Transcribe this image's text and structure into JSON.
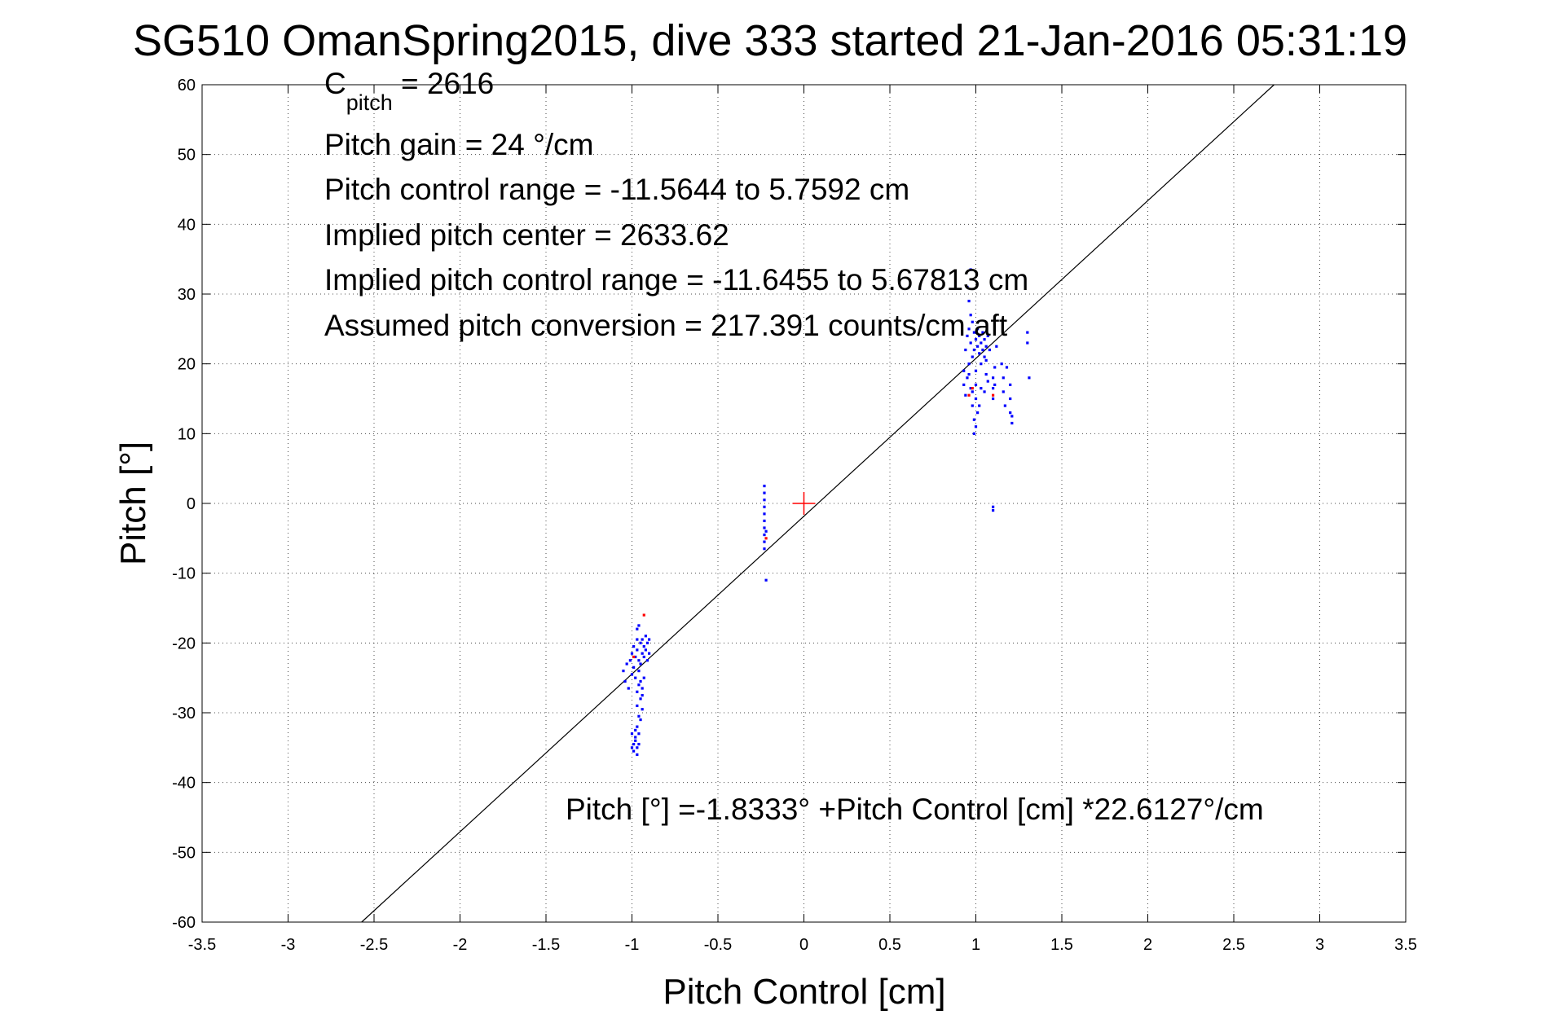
{
  "chart_data": {
    "type": "scatter",
    "title": "SG510 OmanSpring2015, dive 333 started 21-Jan-2016 05:31:19",
    "xlabel": "Pitch Control [cm]",
    "ylabel": "Pitch [°]",
    "xlim": [
      -3.5,
      3.5
    ],
    "ylim": [
      -60,
      60
    ],
    "xticks": [
      -3.5,
      -3,
      -2.5,
      -2,
      -1.5,
      -1,
      -0.5,
      0,
      0.5,
      1,
      1.5,
      2,
      2.5,
      3,
      3.5
    ],
    "yticks": [
      -60,
      -50,
      -40,
      -30,
      -20,
      -10,
      0,
      10,
      20,
      30,
      40,
      50,
      60
    ],
    "xtick_labels": [
      "-3.5",
      "-3",
      "-2.5",
      "-2",
      "-1.5",
      "-1",
      "-0.5",
      "0",
      "0.5",
      "1",
      "1.5",
      "2",
      "2.5",
      "3",
      "3.5"
    ],
    "ytick_labels": [
      "-60",
      "-50",
      "-40",
      "-30",
      "-20",
      "-10",
      "0",
      "10",
      "20",
      "30",
      "40",
      "50",
      "60"
    ],
    "grid": true,
    "colors": {
      "main": "#0000ff",
      "flagged": "#ff0000",
      "fit": "#000000",
      "center": "#ff0000"
    },
    "fit_line": {
      "intercept": -1.8333,
      "slope": 22.6127
    },
    "center_marker": {
      "x": 0,
      "y": 0
    },
    "annotations": {
      "c_pitch_main": "C",
      "c_pitch_sub": "pitch",
      "c_pitch_value": " = 2616",
      "pitch_gain": "Pitch gain = 24 °/cm",
      "control_range": "Pitch control range = -11.5644 to 5.7592 cm",
      "implied_center": "Implied pitch center = 2633.62",
      "implied_range": "Implied pitch control range = -11.6455 to 5.67813 cm",
      "conversion": "Assumed pitch conversion = 217.391 counts/cm aft",
      "fit_equation": "Pitch [°] =-1.8333° +Pitch Control [cm] *22.6127°/cm"
    },
    "series": [
      {
        "values": [
          [
            -1.05,
            -24
          ],
          [
            -1.04,
            -25.5
          ],
          [
            -1.03,
            -23
          ],
          [
            -1.02,
            -26.5
          ],
          [
            -1.01,
            -22.5
          ],
          [
            -1.0,
            -21.5
          ],
          [
            -1.0,
            -24.5
          ],
          [
            -0.99,
            -20.5
          ],
          [
            -0.99,
            -23.5
          ],
          [
            -0.98,
            -22
          ],
          [
            -0.98,
            -25
          ],
          [
            -0.97,
            -18
          ],
          [
            -0.97,
            -19.5
          ],
          [
            -0.97,
            -21
          ],
          [
            -0.97,
            -27
          ],
          [
            -0.96,
            -17.5
          ],
          [
            -0.96,
            -22.5
          ],
          [
            -0.96,
            -24
          ],
          [
            -0.95,
            -20
          ],
          [
            -0.95,
            -23
          ],
          [
            -0.94,
            -21.5
          ],
          [
            -0.94,
            -19.5
          ],
          [
            -0.93,
            -22
          ],
          [
            -0.93,
            -20.5
          ],
          [
            -0.92,
            -21
          ],
          [
            -0.92,
            -19
          ],
          [
            -0.91,
            -22.5
          ],
          [
            -0.91,
            -20
          ],
          [
            -0.9,
            -19.5
          ],
          [
            -0.9,
            -21.5
          ],
          [
            -0.97,
            -29
          ],
          [
            -0.96,
            -30.5
          ],
          [
            -0.95,
            -28
          ],
          [
            -0.95,
            -31
          ],
          [
            -0.94,
            -29.5
          ],
          [
            -0.94,
            -27.5
          ],
          [
            -0.96,
            -26
          ],
          [
            -0.95,
            -25.5
          ],
          [
            -0.94,
            -26.5
          ],
          [
            -0.93,
            -25
          ],
          [
            -0.97,
            -32
          ],
          [
            -0.96,
            -33
          ],
          [
            -0.98,
            -33.5
          ],
          [
            -0.99,
            -34.5
          ],
          [
            -0.99,
            -35.5
          ],
          [
            -1.0,
            -35
          ],
          [
            -0.98,
            -34
          ],
          [
            -0.97,
            -35
          ],
          [
            -0.96,
            -34.5
          ],
          [
            -0.98,
            -32.5
          ],
          [
            -1.0,
            -33
          ],
          [
            -0.97,
            -36
          ],
          [
            -0.23,
            2.5
          ],
          [
            -0.23,
            1.5
          ],
          [
            -0.23,
            0.5
          ],
          [
            -0.23,
            -0.5
          ],
          [
            -0.23,
            -1.5
          ],
          [
            -0.23,
            -2.5
          ],
          [
            -0.23,
            -3.5
          ],
          [
            -0.23,
            -4.5
          ],
          [
            -0.23,
            -5.5
          ],
          [
            -0.23,
            -6.5
          ],
          [
            -0.22,
            -4
          ],
          [
            -0.22,
            -11
          ],
          [
            0.95,
            31
          ],
          [
            0.96,
            29
          ],
          [
            0.97,
            33.5
          ],
          [
            0.97,
            27
          ],
          [
            0.96,
            25
          ],
          [
            0.95,
            24
          ],
          [
            0.94,
            22
          ],
          [
            0.93,
            19
          ],
          [
            0.93,
            17
          ],
          [
            0.94,
            15.5
          ],
          [
            0.95,
            18
          ],
          [
            0.96,
            20
          ],
          [
            0.97,
            23
          ],
          [
            0.98,
            26
          ],
          [
            0.98,
            21
          ],
          [
            0.99,
            24.5
          ],
          [
            0.99,
            22
          ],
          [
            1.0,
            23.5
          ],
          [
            1.0,
            19
          ],
          [
            1.01,
            25
          ],
          [
            1.01,
            22.5
          ],
          [
            1.02,
            24
          ],
          [
            1.02,
            21.5
          ],
          [
            1.03,
            23
          ],
          [
            1.03,
            20
          ],
          [
            1.04,
            22
          ],
          [
            1.04,
            24.5
          ],
          [
            1.05,
            21
          ],
          [
            1.05,
            23.5
          ],
          [
            1.06,
            22.5
          ],
          [
            1.06,
            20.5
          ],
          [
            1.07,
            24
          ],
          [
            1.08,
            22
          ],
          [
            1.0,
            17
          ],
          [
            1.0,
            15
          ],
          [
            1.01,
            13
          ],
          [
            0.99,
            12
          ],
          [
            0.99,
            10
          ],
          [
            1.0,
            11
          ],
          [
            1.02,
            14
          ],
          [
            1.03,
            16.5
          ],
          [
            0.98,
            16
          ],
          [
            0.98,
            14
          ],
          [
            1.1,
            18
          ],
          [
            1.1,
            16.5
          ],
          [
            1.1,
            15
          ],
          [
            1.11,
            19.5
          ],
          [
            1.11,
            17
          ],
          [
            1.12,
            22.5
          ],
          [
            1.15,
            20
          ],
          [
            1.16,
            18
          ],
          [
            1.16,
            16
          ],
          [
            1.17,
            14
          ],
          [
            1.18,
            19.5
          ],
          [
            1.2,
            17
          ],
          [
            1.2,
            15
          ],
          [
            1.2,
            13
          ],
          [
            1.21,
            11.5
          ],
          [
            1.21,
            12.5
          ],
          [
            1.3,
            23
          ],
          [
            1.3,
            24.5
          ],
          [
            1.31,
            18
          ],
          [
            1.1,
            -0.5
          ],
          [
            1.1,
            -1
          ],
          [
            1.05,
            16
          ],
          [
            1.06,
            18.5
          ],
          [
            1.07,
            17.5
          ],
          [
            0.96,
            18.5
          ],
          [
            0.97,
            16.5
          ]
        ]
      },
      {
        "values": [
          [
            -0.93,
            -16
          ],
          [
            -0.99,
            -22
          ],
          [
            -0.22,
            -5
          ],
          [
            0.96,
            15.5
          ],
          [
            0.98,
            16.5
          ],
          [
            1.1,
            15.5
          ]
        ]
      }
    ]
  }
}
